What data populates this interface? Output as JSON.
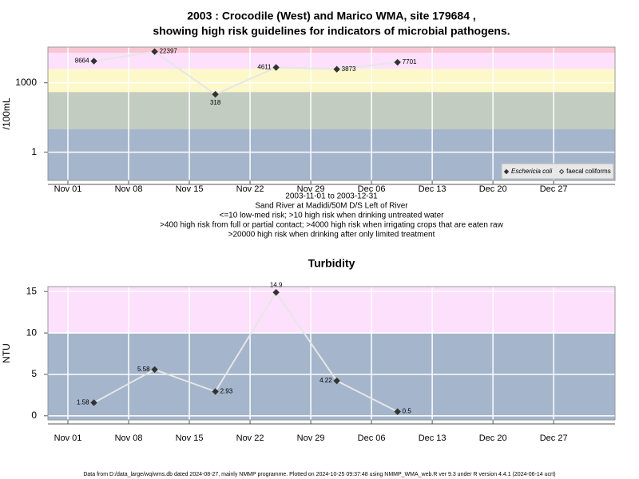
{
  "chart_data": [
    {
      "type": "line",
      "scale": "log",
      "title": [
        "2003 : Crocodile (West) and Marico WMA, site 179684 ,",
        "showing high risk guidelines for indicators of microbial pathogens."
      ],
      "subtitle": [
        "2003-11-01 to 2003-12-31",
        "Sand River at Madidi/50M D/S Left of River",
        "<=10 low-med risk; >10 high risk when drinking untreated water",
        ">400 high risk from full or partial contact; >4000 high risk when irrigating crops that are eaten raw",
        ">20000 high risk when drinking after only limited treatment"
      ],
      "ylabel": "/100mL",
      "x": [
        "2003-11-04",
        "2003-11-11",
        "2003-11-18",
        "2003-11-25",
        "2003-12-02",
        "2003-12-09"
      ],
      "xticks": [
        {
          "value": "2003-11-01",
          "label": "Nov 01"
        },
        {
          "value": "2003-11-08",
          "label": "Nov 08"
        },
        {
          "value": "2003-11-15",
          "label": "Nov 15"
        },
        {
          "value": "2003-11-22",
          "label": "Nov 22"
        },
        {
          "value": "2003-11-29",
          "label": "Nov 29"
        },
        {
          "value": "2003-12-06",
          "label": "Dec 06"
        },
        {
          "value": "2003-12-13",
          "label": "Dec 13"
        },
        {
          "value": "2003-12-20",
          "label": "Dec 20"
        },
        {
          "value": "2003-12-27",
          "label": "Dec 27"
        }
      ],
      "ylim": [
        0.06,
        35000
      ],
      "yticks": [
        1,
        1000
      ],
      "thresholds": [
        10,
        400,
        4000,
        20000
      ],
      "band_colors": [
        "#a4b5cc",
        "#c3ccc0",
        "#fdf8c9",
        "#fde0fc",
        "#fac6d4"
      ],
      "series": [
        {
          "name": "Eschericia coli",
          "color": "#333333",
          "marker": "filled",
          "values": [
            8664,
            22397,
            318,
            4611,
            3873,
            7701
          ]
        },
        {
          "name": "faecal coliforms",
          "color": "#333333",
          "marker": "open",
          "values": [
            null,
            null,
            null,
            null,
            null,
            null
          ]
        }
      ],
      "legend": "bottom-right",
      "grid": true
    },
    {
      "type": "line",
      "scale": "linear",
      "title": [
        "Turbidity"
      ],
      "ylabel": "NTU",
      "x": [
        "2003-11-04",
        "2003-11-11",
        "2003-11-18",
        "2003-11-25",
        "2003-12-02",
        "2003-12-09"
      ],
      "xticks": [
        {
          "value": "2003-11-01",
          "label": "Nov 01"
        },
        {
          "value": "2003-11-08",
          "label": "Nov 08"
        },
        {
          "value": "2003-11-15",
          "label": "Nov 15"
        },
        {
          "value": "2003-11-22",
          "label": "Nov 22"
        },
        {
          "value": "2003-11-29",
          "label": "Nov 29"
        },
        {
          "value": "2003-12-06",
          "label": "Dec 06"
        },
        {
          "value": "2003-12-13",
          "label": "Dec 13"
        },
        {
          "value": "2003-12-20",
          "label": "Dec 20"
        },
        {
          "value": "2003-12-27",
          "label": "Dec 27"
        }
      ],
      "ylim": [
        -0.5,
        15.6
      ],
      "yticks": [
        0,
        5,
        10,
        15
      ],
      "thresholds": [
        10
      ],
      "band_colors": [
        "#a4b5cc",
        "#fde0fc"
      ],
      "series": [
        {
          "name": "Turbidity",
          "color": "#333333",
          "marker": "filled",
          "values": [
            1.58,
            5.58,
            2.93,
            14.9,
            4.22,
            0.5
          ]
        }
      ],
      "grid": true
    }
  ],
  "footer": "Data from D:/data_large/wq/wms.db dated 2024-08-27, mainly NMMP programme. Plotted on 2024-10-25 09:37:48 using NMMP_WMA_web.R ver 9.3 under R version 4.4.1 (2024-06-14 ucrt)"
}
